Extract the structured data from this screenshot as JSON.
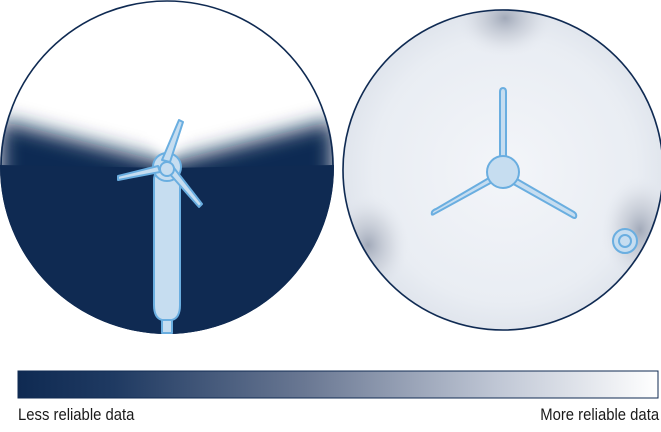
{
  "legend": {
    "left_label": "Less reliable data",
    "right_label": "More reliable data",
    "gradient_colors": [
      "#0f2a52",
      "#ffffff"
    ]
  },
  "colors": {
    "dark_navy": "#0f2a52",
    "outline": "#0f2a52",
    "turbine_fill": "#c6ddf0",
    "turbine_stroke": "#6aaee0",
    "disc_light": "#e7ebf2",
    "haze": "#b9c0cd"
  },
  "panels": [
    {
      "name": "side-view",
      "icon": "wind-turbine-side-icon"
    },
    {
      "name": "top-view",
      "icon": "wind-turbine-top-icon"
    }
  ]
}
